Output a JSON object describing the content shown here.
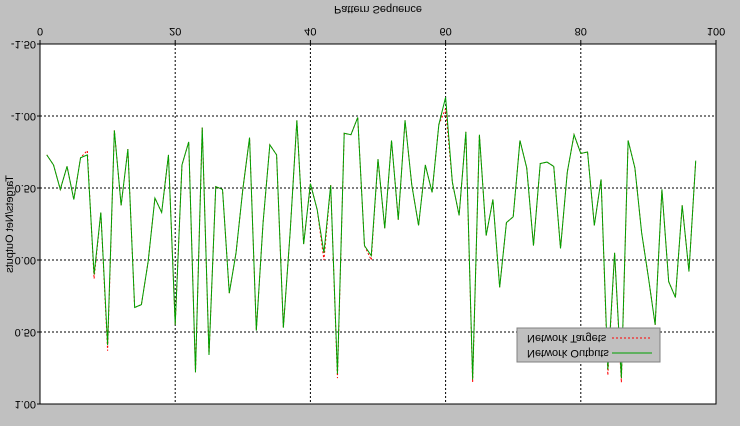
{
  "chart_data": {
    "type": "line",
    "title": "Pattern Sequence",
    "y_label": "Targets/Net Outputs",
    "inverted_y": true,
    "mirrored_text": true,
    "x": [
      1,
      2,
      3,
      4,
      5,
      6,
      7,
      8,
      9,
      10,
      11,
      12,
      13,
      14,
      15,
      16,
      17,
      18,
      19,
      20,
      21,
      22,
      23,
      24,
      25,
      26,
      27,
      28,
      29,
      30,
      31,
      32,
      33,
      34,
      35,
      36,
      37,
      38,
      39,
      40,
      41,
      42,
      43,
      44,
      45,
      46,
      47,
      48,
      49,
      50,
      51,
      52,
      53,
      54,
      55,
      56,
      57,
      58,
      59,
      60,
      61,
      62,
      63,
      64,
      65,
      66,
      67,
      68,
      69,
      70,
      71,
      72,
      73,
      74,
      75,
      76,
      77,
      78,
      79,
      80,
      81,
      82,
      83,
      84,
      85,
      86,
      87,
      88,
      89,
      90,
      91,
      92,
      93,
      94,
      95,
      96,
      97
    ],
    "series": [
      {
        "name": "Network Targets",
        "color": "#ff0000",
        "dashed": true,
        "values": [
          -0.73,
          -0.66,
          -0.49,
          -0.65,
          -0.42,
          -0.71,
          -0.76,
          0.13,
          -0.33,
          0.63,
          -0.9,
          -0.38,
          -0.77,
          0.33,
          0.31,
          0.01,
          -0.43,
          -0.33,
          -0.73,
          0.45,
          -0.66,
          -0.82,
          0.78,
          -0.92,
          0.66,
          -0.51,
          -0.49,
          0.23,
          -0.05,
          -0.49,
          -0.85,
          0.49,
          -0.26,
          -0.8,
          -0.73,
          0.47,
          -0.19,
          -0.97,
          -0.11,
          -0.53,
          -0.35,
          0.0,
          -0.52,
          0.82,
          -0.88,
          -0.87,
          -0.99,
          -0.1,
          0.0,
          -0.7,
          -0.22,
          -0.83,
          -0.28,
          -0.97,
          -0.52,
          -0.24,
          -0.66,
          -0.47,
          -0.94,
          -1.05,
          -0.54,
          -0.31,
          -0.89,
          0.85,
          -0.87,
          -0.17,
          -0.42,
          0.19,
          -0.26,
          -0.3,
          -0.83,
          -0.64,
          -0.1,
          -0.67,
          -0.68,
          -0.65,
          -0.08,
          -0.61,
          -0.87,
          -0.74,
          -0.75,
          -0.24,
          -0.56,
          0.8,
          -0.05,
          0.85,
          -0.83,
          -0.64,
          -0.19,
          0.12,
          0.45,
          -0.49,
          0.15,
          0.26,
          -0.38,
          0.08,
          -0.69
        ]
      },
      {
        "name": "Network Outputs",
        "color": "#00a000",
        "dashed": false,
        "values": [
          -0.73,
          -0.66,
          -0.49,
          -0.65,
          -0.42,
          -0.71,
          -0.73,
          0.1,
          -0.33,
          0.59,
          -0.9,
          -0.38,
          -0.77,
          0.33,
          0.31,
          0.01,
          -0.43,
          -0.33,
          -0.73,
          0.45,
          -0.66,
          -0.82,
          0.78,
          -0.92,
          0.66,
          -0.51,
          -0.49,
          0.23,
          -0.05,
          -0.49,
          -0.85,
          0.49,
          -0.26,
          -0.8,
          -0.73,
          0.47,
          -0.19,
          -0.97,
          -0.11,
          -0.53,
          -0.35,
          -0.05,
          -0.52,
          0.79,
          -0.88,
          -0.87,
          -0.99,
          -0.1,
          -0.03,
          -0.7,
          -0.22,
          -0.83,
          -0.28,
          -0.97,
          -0.52,
          -0.24,
          -0.66,
          -0.47,
          -0.94,
          -1.13,
          -0.54,
          -0.31,
          -0.89,
          0.83,
          -0.87,
          -0.17,
          -0.42,
          0.19,
          -0.26,
          -0.3,
          -0.83,
          -0.64,
          -0.1,
          -0.67,
          -0.68,
          -0.65,
          -0.08,
          -0.61,
          -0.87,
          -0.74,
          -0.75,
          -0.24,
          -0.56,
          0.76,
          -0.05,
          0.82,
          -0.83,
          -0.64,
          -0.19,
          0.12,
          0.45,
          -0.49,
          0.15,
          0.26,
          -0.38,
          0.08,
          -0.69
        ]
      }
    ],
    "xlim": [
      0,
      100
    ],
    "xticks": [
      0,
      20,
      40,
      60,
      80,
      100
    ],
    "ylim": [
      -1.5,
      1.0
    ],
    "yticks": [
      {
        "value": -1.5,
        "label": "-1.50"
      },
      {
        "value": -1.0,
        "label": "-1.00"
      },
      {
        "value": -0.5,
        "label": "-0.50"
      },
      {
        "value": 0,
        "label": "0.00"
      },
      {
        "value": 0.5,
        "label": "0.50"
      },
      {
        "value": 1.0,
        "label": "1.00"
      }
    ],
    "grid": true
  }
}
